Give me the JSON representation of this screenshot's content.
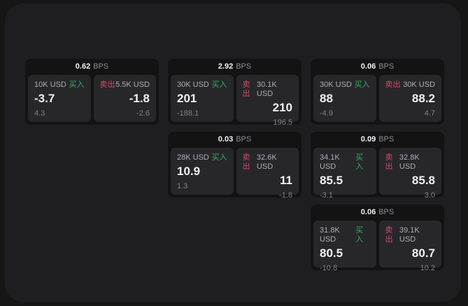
{
  "labels": {
    "bps_unit": "BPS",
    "buy": "买入",
    "sell": "卖出"
  },
  "colors": {
    "background_outer": "#161617",
    "background_panel": "#1e1e20",
    "card_background": "#131314",
    "subpanel_background": "#27272a",
    "buy_accent": "#32ab60",
    "sell_accent": "#d04a6b",
    "primary_text": "#f2f2f4",
    "secondary_text": "#aeaeb2",
    "dim_text": "#828286"
  },
  "cards": [
    {
      "col": 1,
      "row": 1,
      "bps_value": "0.62",
      "bps_unit": "BPS",
      "buy": {
        "side_label": "买入",
        "amount": "10K USD",
        "price": "-3.7",
        "delta": "4.3"
      },
      "sell": {
        "side_label": "卖出",
        "amount": "5.5K USD",
        "price": "-1.8",
        "delta": "-2.6"
      }
    },
    {
      "col": 2,
      "row": 1,
      "bps_value": "2.92",
      "bps_unit": "BPS",
      "buy": {
        "side_label": "买入",
        "amount": "30K USD",
        "price": "201",
        "delta": "-188.1"
      },
      "sell": {
        "side_label": "卖出",
        "amount": "30.1K USD",
        "price": "210",
        "delta": "196.5"
      }
    },
    {
      "col": 3,
      "row": 1,
      "bps_value": "0.06",
      "bps_unit": "BPS",
      "buy": {
        "side_label": "买入",
        "amount": "30K USD",
        "price": "88",
        "delta": "-4.9"
      },
      "sell": {
        "side_label": "卖出",
        "amount": "30K USD",
        "price": "88.2",
        "delta": "4.7"
      }
    },
    {
      "col": 2,
      "row": 2,
      "bps_value": "0.03",
      "bps_unit": "BPS",
      "buy": {
        "side_label": "买入",
        "amount": "28K USD",
        "price": "10.9",
        "delta": "1.3"
      },
      "sell": {
        "side_label": "卖出",
        "amount": "32.6K USD",
        "price": "11",
        "delta": "-1.8"
      }
    },
    {
      "col": 3,
      "row": 2,
      "bps_value": "0.09",
      "bps_unit": "BPS",
      "buy": {
        "side_label": "买入",
        "amount": "34.1K USD",
        "price": "85.5",
        "delta": "-3.1"
      },
      "sell": {
        "side_label": "卖出",
        "amount": "32.8K USD",
        "price": "85.8",
        "delta": "3.0"
      }
    },
    {
      "col": 3,
      "row": 3,
      "bps_value": "0.06",
      "bps_unit": "BPS",
      "buy": {
        "side_label": "买入",
        "amount": "31.8K USD",
        "price": "80.5",
        "delta": "-10.8"
      },
      "sell": {
        "side_label": "卖出",
        "amount": "39.1K USD",
        "price": "80.7",
        "delta": "10.2"
      }
    }
  ]
}
